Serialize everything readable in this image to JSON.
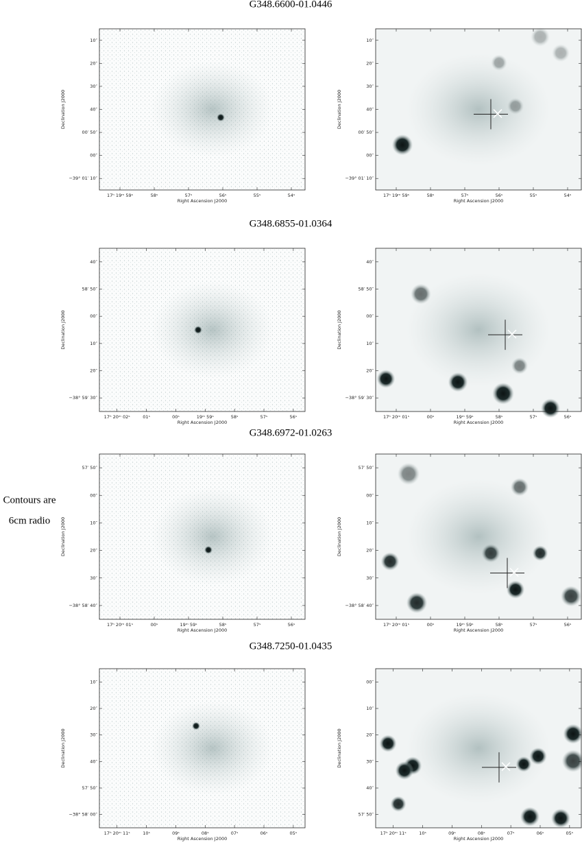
{
  "axis_labels": {
    "x": "Right Ascension J2000",
    "y": "Declination J2000"
  },
  "annotation": [
    "Contours are",
    "6cm radio"
  ],
  "rows": [
    {
      "title": "G348.6600-01.0446",
      "panels": [
        {
          "yticks": [
            "10″",
            "20″",
            "30″",
            "40″",
            "00′ 50″",
            "00″",
            "−39° 01′ 10″"
          ],
          "xticks": [
            "17ʰ 19ᵐ 59ˢ",
            "58ˢ",
            "57ˢ",
            "56ˢ",
            "55ˢ",
            "54ˢ"
          ]
        },
        {
          "yticks": [
            "10″",
            "20″",
            "30″",
            "40″",
            "00′ 50″",
            "00″",
            "−39° 01′ 10″"
          ],
          "xticks": [
            "17ʰ 19ᵐ 59ˢ",
            "58ˢ",
            "57ˢ",
            "56ˢ",
            "55ˢ",
            "54ˢ"
          ]
        }
      ]
    },
    {
      "title": "G348.6855-01.0364",
      "panels": [
        {
          "yticks": [
            "40″",
            "58′ 50″",
            "00″",
            "10″",
            "20″",
            "−38° 59′ 30″"
          ],
          "xticks": [
            "17ʰ 20ᵐ 02ˢ",
            "01ˢ",
            "00ˢ",
            "19ᵐ 59ˢ",
            "58ˢ",
            "57ˢ",
            "56ˢ"
          ]
        },
        {
          "yticks": [
            "40″",
            "58′ 50″",
            "00″",
            "10″",
            "20″",
            "−38° 59′ 30″"
          ],
          "xticks": [
            "17ʰ 20ᵐ 01ˢ",
            "00ˢ",
            "19ᵐ 59ˢ",
            "58ˢ",
            "57ˢ",
            "56ˢ"
          ]
        }
      ]
    },
    {
      "title": "G348.6972-01.0263",
      "panels": [
        {
          "yticks": [
            "57′ 50″",
            "00″",
            "10″",
            "20″",
            "30″",
            "−38° 58′ 40″"
          ],
          "xticks": [
            "17ʰ 20ᵐ 01ˢ",
            "00ˢ",
            "19ᵐ 59ˢ",
            "58ˢ",
            "57ˢ",
            "56ˢ"
          ]
        },
        {
          "yticks": [
            "57′ 50″",
            "00″",
            "10″",
            "20″",
            "30″",
            "−38° 58′ 40″"
          ],
          "xticks": [
            "17ʰ 20ᵐ 01ˢ",
            "00ˢ",
            "19ᵐ 59ˢ",
            "58ˢ",
            "57ˢ",
            "56ˢ"
          ]
        }
      ]
    },
    {
      "title": "G348.7250-01.0435",
      "panels": [
        {
          "yticks": [
            "10″",
            "20″",
            "30″",
            "40″",
            "57′ 50″",
            "−38° 58′ 00″"
          ],
          "xticks": [
            "17ʰ 20ᵐ 11ˢ",
            "10ˢ",
            "09ˢ",
            "08ˢ",
            "07ˢ",
            "06ˢ",
            "05ˢ"
          ]
        },
        {
          "yticks": [
            "00″",
            "10″",
            "20″",
            "30″",
            "40″",
            "57′ 50″"
          ],
          "xticks": [
            "17ʰ 20ᵐ 11ˢ",
            "10ˢ",
            "09ˢ",
            "08ˢ",
            "07ˢ",
            "06ˢ",
            "05ˢ"
          ]
        }
      ]
    }
  ]
}
